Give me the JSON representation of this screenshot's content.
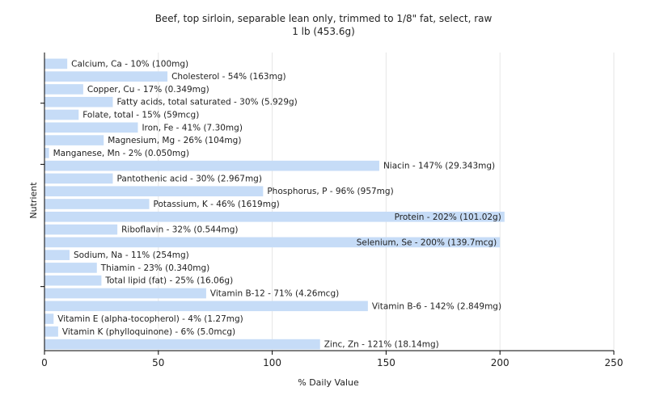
{
  "chart_data": {
    "type": "bar",
    "orientation": "horizontal",
    "title": "Beef, top sirloin, separable lean only, trimmed to 1/8\" fat, select, raw",
    "subtitle": "1 lb (453.6g)",
    "xlabel": "% Daily Value",
    "ylabel": "Nutrient",
    "xlim": [
      0,
      250
    ],
    "xticks": [
      0,
      50,
      100,
      150,
      200,
      250
    ],
    "grid": true,
    "bar_color": "#c6dcf7",
    "categories": [
      "Calcium, Ca",
      "Cholesterol",
      "Copper, Cu",
      "Fatty acids, total saturated",
      "Folate, total",
      "Iron, Fe",
      "Magnesium, Mg",
      "Manganese, Mn",
      "Niacin",
      "Pantothenic acid",
      "Phosphorus, P",
      "Potassium, K",
      "Protein",
      "Riboflavin",
      "Selenium, Se",
      "Sodium, Na",
      "Thiamin",
      "Total lipid (fat)",
      "Vitamin B-12",
      "Vitamin B-6",
      "Vitamin E (alpha-tocopherol)",
      "Vitamin K (phylloquinone)",
      "Zinc, Zn"
    ],
    "values": [
      10,
      54,
      17,
      30,
      15,
      41,
      26,
      2,
      147,
      30,
      96,
      46,
      202,
      32,
      200,
      11,
      23,
      25,
      71,
      142,
      4,
      6,
      121
    ],
    "labels": [
      "Calcium, Ca - 10% (100mg)",
      "Cholesterol - 54% (163mg)",
      "Copper, Cu - 17% (0.349mg)",
      "Fatty acids, total saturated - 30% (5.929g)",
      "Folate, total - 15% (59mcg)",
      "Iron, Fe - 41% (7.30mg)",
      "Magnesium, Mg - 26% (104mg)",
      "Manganese, Mn - 2% (0.050mg)",
      "Niacin - 147% (29.343mg)",
      "Pantothenic acid - 30% (2.967mg)",
      "Phosphorus, P - 96% (957mg)",
      "Potassium, K - 46% (1619mg)",
      "Protein - 202% (101.02g)",
      "Riboflavin - 32% (0.544mg)",
      "Selenium, Se - 200% (139.7mcg)",
      "Sodium, Na - 11% (254mg)",
      "Thiamin - 23% (0.340mg)",
      "Total lipid (fat) - 25% (16.06g)",
      "Vitamin B-12 - 71% (4.26mcg)",
      "Vitamin B-6 - 142% (2.849mg)",
      "Vitamin E (alpha-tocopherol) - 4% (1.27mg)",
      "Vitamin K (phylloquinone) - 6% (5.0mcg)",
      "Zinc, Zn - 121% (18.14mg)"
    ]
  }
}
